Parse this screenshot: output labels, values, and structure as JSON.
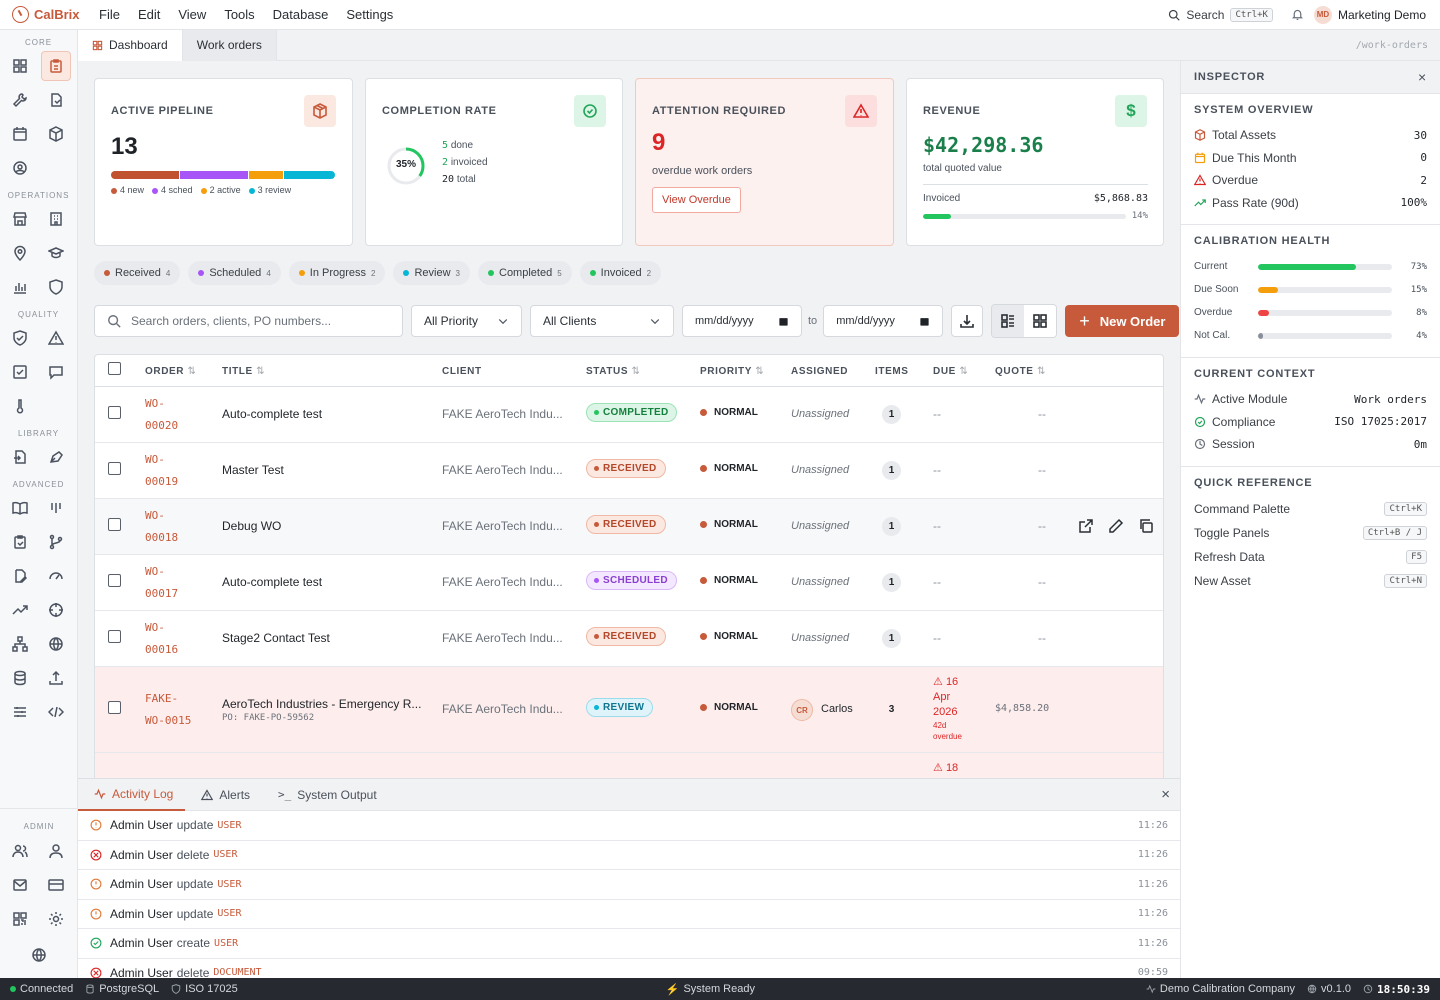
{
  "app": {
    "name": "CalBrix",
    "menu": [
      "File",
      "Edit",
      "View",
      "Tools",
      "Database",
      "Settings"
    ],
    "search_label": "Search",
    "search_kbd": "Ctrl+K",
    "user_initials": "MD",
    "user_name": "Marketing Demo"
  },
  "sidebar": {
    "groups": [
      "CORE",
      "OPERATIONS",
      "QUALITY",
      "LIBRARY",
      "ADVANCED",
      "ADMIN"
    ]
  },
  "tabs": [
    {
      "label": "Dashboard"
    },
    {
      "label": "Work orders"
    }
  ],
  "route": "/work-orders",
  "cards": {
    "pipeline": {
      "title": "ACTIVE PIPELINE",
      "value": "13",
      "legend": [
        "4 new",
        "4 sched",
        "2 active",
        "3 review"
      ],
      "segments": [
        4,
        4,
        2,
        3
      ]
    },
    "completion": {
      "title": "COMPLETION RATE",
      "pct": "35%",
      "pct_value": 0.35,
      "done_n": "5",
      "done_l": "done",
      "inv_n": "2",
      "inv_l": "invoiced",
      "tot_n": "20",
      "tot_l": "total"
    },
    "attention": {
      "title": "ATTENTION REQUIRED",
      "value": "9",
      "sub": "overdue work orders",
      "button": "View Overdue"
    },
    "revenue": {
      "title": "REVENUE",
      "value": "$42,298.36",
      "sub": "total quoted value",
      "inv_label": "Invoiced",
      "inv_value": "$5,868.83",
      "inv_pct": "14%",
      "inv_frac": 0.14
    }
  },
  "chips": [
    {
      "label": "Received",
      "count": "4",
      "color": "#c75a3a"
    },
    {
      "label": "Scheduled",
      "count": "4",
      "color": "#a855f7"
    },
    {
      "label": "In Progress",
      "count": "2",
      "color": "#f59e0b"
    },
    {
      "label": "Review",
      "count": "3",
      "color": "#06b6d4"
    },
    {
      "label": "Completed",
      "count": "5",
      "color": "#22c55e"
    },
    {
      "label": "Invoiced",
      "count": "2",
      "color": "#22c55e"
    }
  ],
  "filters": {
    "search_placeholder": "Search orders, clients, PO numbers...",
    "priority": "All Priority",
    "clients": "All Clients",
    "date_placeholder": "mm/dd/yyyy",
    "to": "to",
    "new_order": "New Order"
  },
  "table": {
    "headers": [
      "ORDER",
      "TITLE",
      "CLIENT",
      "STATUS",
      "PRIORITY",
      "ASSIGNED",
      "ITEMS",
      "DUE",
      "QUOTE"
    ],
    "rows": [
      {
        "o1": "WO-",
        "o2": "00020",
        "title": "Auto-complete test",
        "client": "FAKE AeroTech Indu...",
        "status": "COMPLETED",
        "priority": "NORMAL",
        "assigned": "Unassigned",
        "items": "1",
        "due": "--",
        "quote": "--"
      },
      {
        "o1": "WO-",
        "o2": "00019",
        "title": "Master Test",
        "client": "FAKE AeroTech Indu...",
        "status": "RECEIVED",
        "priority": "NORMAL",
        "assigned": "Unassigned",
        "items": "1",
        "due": "--",
        "quote": "--"
      },
      {
        "o1": "WO-",
        "o2": "00018",
        "title": "Debug WO",
        "client": "FAKE AeroTech Indu...",
        "status": "RECEIVED",
        "priority": "NORMAL",
        "assigned": "Unassigned",
        "items": "1",
        "due": "--",
        "quote": "--"
      },
      {
        "o1": "WO-",
        "o2": "00017",
        "title": "Auto-complete test",
        "client": "FAKE AeroTech Indu...",
        "status": "SCHEDULED",
        "priority": "NORMAL",
        "assigned": "Unassigned",
        "items": "1",
        "due": "--",
        "quote": "--"
      },
      {
        "o1": "WO-",
        "o2": "00016",
        "title": "Stage2 Contact Test",
        "client": "FAKE AeroTech Indu...",
        "status": "RECEIVED",
        "priority": "NORMAL",
        "assigned": "Unassigned",
        "items": "1",
        "due": "--",
        "quote": "--"
      },
      {
        "o1": "FAKE-",
        "o2": "WO-0015",
        "title": "AeroTech Industries - Emergency R...",
        "po": "PO: FAKE-PO-59562",
        "client": "FAKE AeroTech Indu...",
        "status": "REVIEW",
        "priority": "NORMAL",
        "assigned_initials": "CR",
        "assigned": "Carlos",
        "items": "3",
        "due_day": "16",
        "due_mon": "Apr",
        "due_year": "2026",
        "due_over": "42d",
        "due_over2": "overdue",
        "quote": "$4,858.20"
      }
    ],
    "next_due": "18"
  },
  "inspector": {
    "title": "INSPECTOR",
    "overview_title": "SYSTEM OVERVIEW",
    "overview": [
      {
        "label": "Total Assets",
        "value": "30"
      },
      {
        "label": "Due This Month",
        "value": "0"
      },
      {
        "label": "Overdue",
        "value": "2"
      },
      {
        "label": "Pass Rate (90d)",
        "value": "100%"
      }
    ],
    "health_title": "CALIBRATION HEALTH",
    "health": [
      {
        "label": "Current",
        "pct": "73%",
        "v": 73,
        "color": "#22c55e"
      },
      {
        "label": "Due Soon",
        "pct": "15%",
        "v": 15,
        "color": "#f59e0b"
      },
      {
        "label": "Overdue",
        "pct": "8%",
        "v": 8,
        "color": "#ef4444"
      },
      {
        "label": "Not Cal.",
        "pct": "4%",
        "v": 4,
        "color": "#8a9099"
      }
    ],
    "context_title": "CURRENT CONTEXT",
    "context": [
      {
        "label": "Active Module",
        "value": "Work orders"
      },
      {
        "label": "Compliance",
        "value": "ISO 17025:2017"
      },
      {
        "label": "Session",
        "value": "0m"
      }
    ],
    "ref_title": "QUICK REFERENCE",
    "ref": [
      {
        "label": "Command Palette",
        "key": "Ctrl+K"
      },
      {
        "label": "Toggle Panels",
        "key": "Ctrl+B / J"
      },
      {
        "label": "Refresh Data",
        "key": "F5"
      },
      {
        "label": "New Asset",
        "key": "Ctrl+N"
      }
    ]
  },
  "bottom": {
    "tabs": [
      "Activity Log",
      "Alerts",
      "System Output"
    ],
    "log": [
      {
        "kind": "info",
        "user": "Admin User",
        "action": "update",
        "entity": "USER",
        "time": "11:26"
      },
      {
        "kind": "error",
        "user": "Admin User",
        "action": "delete",
        "entity": "USER",
        "time": "11:26"
      },
      {
        "kind": "info",
        "user": "Admin User",
        "action": "update",
        "entity": "USER",
        "time": "11:26"
      },
      {
        "kind": "info",
        "user": "Admin User",
        "action": "update",
        "entity": "USER",
        "time": "11:26"
      },
      {
        "kind": "ok",
        "user": "Admin User",
        "action": "create",
        "entity": "USER",
        "time": "11:26"
      },
      {
        "kind": "error",
        "user": "Admin User",
        "action": "delete",
        "entity": "DOCUMENT",
        "time": "09:59"
      }
    ]
  },
  "status": {
    "connected": "Connected",
    "db": "PostgreSQL",
    "iso": "ISO 17025",
    "ready": "System Ready",
    "company": "Demo Calibration Company",
    "version": "v0.1.0",
    "clock": "18:50:39"
  }
}
